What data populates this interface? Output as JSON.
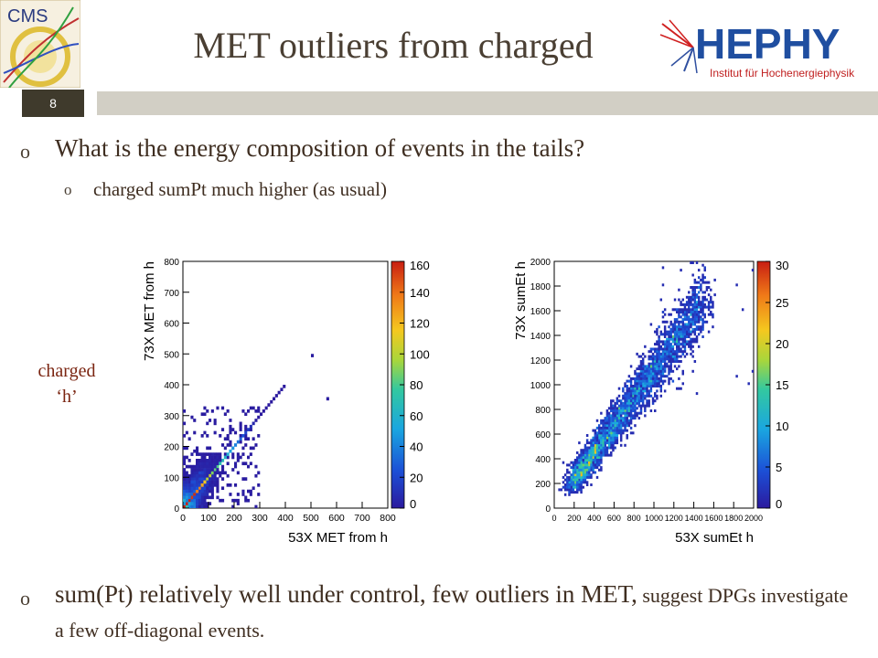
{
  "header": {
    "title": "MET outliers from charged",
    "page_number": "8",
    "left_logo_text": "CMS",
    "right_logo_name": "HEPHY",
    "right_logo_subtitle": "Institut für Hochenergiephysik"
  },
  "bullets": {
    "main_1": "What is the energy composition of events in the tails?",
    "sub_1": "charged sumPt much higher (as usual)",
    "main_2_a": "sum(Pt) relatively well under control, few outliers in MET,",
    "main_2_b": " suggest DPGs investigate a few off-diagonal events."
  },
  "side_label": {
    "line1": "charged",
    "line2": "‘h’"
  },
  "colors": {
    "title": "#4a3f33",
    "label": "#7a2410",
    "page_box": "#3f3a2c",
    "rule_bar": "#d2cfc5"
  },
  "chart_data": [
    {
      "type": "heatmap",
      "title": "",
      "xlabel": "53X MET from h",
      "ylabel": "73X MET from h",
      "xlim": [
        0,
        800
      ],
      "ylim": [
        0,
        800
      ],
      "xticks": [
        "0",
        "100",
        "200",
        "300",
        "400",
        "500",
        "600",
        "700",
        "800"
      ],
      "yticks": [
        "0",
        "100",
        "200",
        "300",
        "400",
        "500",
        "600",
        "700",
        "800"
      ],
      "zlim": [
        0,
        160
      ],
      "zticks": [
        "0",
        "20",
        "40",
        "60",
        "80",
        "100",
        "120",
        "140",
        "160"
      ],
      "outliers": [
        [
          505,
          495
        ],
        [
          565,
          355
        ]
      ]
    },
    {
      "type": "heatmap",
      "title": "",
      "xlabel": "53X sumEt h",
      "ylabel": "73X sumEt h",
      "xlim": [
        0,
        2000
      ],
      "ylim": [
        0,
        2000
      ],
      "xticks": [
        "0",
        "200",
        "400",
        "600",
        "800",
        "1000",
        "1200",
        "1400",
        "1600",
        "1800",
        "2000"
      ],
      "yticks": [
        "0",
        "200",
        "400",
        "600",
        "800",
        "1000",
        "1200",
        "1400",
        "1600",
        "1800",
        "2000"
      ],
      "zlim": [
        0,
        30
      ],
      "zticks": [
        "0",
        "5",
        "10",
        "15",
        "20",
        "25",
        "30"
      ]
    }
  ]
}
